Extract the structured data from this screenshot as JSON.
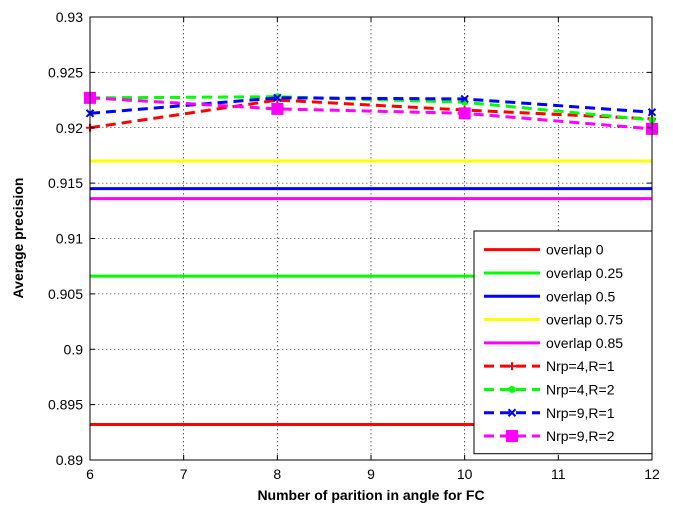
{
  "chart_data": {
    "type": "line",
    "title": "",
    "xlabel": "Number of parition in angle for FC",
    "ylabel": "Average precision",
    "xlim": [
      6,
      12
    ],
    "ylim": [
      0.89,
      0.93
    ],
    "xticks": [
      6,
      7,
      8,
      9,
      10,
      11,
      12
    ],
    "yticks": [
      0.89,
      0.895,
      0.9,
      0.905,
      0.91,
      0.915,
      0.92,
      0.925,
      0.93
    ],
    "x": [
      6,
      8,
      10,
      12
    ],
    "grid": true,
    "legend_position": "bottom-right",
    "series": [
      {
        "name": "overlap 0",
        "values": [
          0.8932,
          0.8932,
          0.8932,
          0.8932
        ],
        "color": "#ff0000",
        "style": "solid",
        "marker": "none"
      },
      {
        "name": "overlap 0.25",
        "values": [
          0.9066,
          0.9066,
          0.9066,
          0.9066
        ],
        "color": "#00ff00",
        "style": "solid",
        "marker": "none"
      },
      {
        "name": "overlap 0.5",
        "values": [
          0.9145,
          0.9145,
          0.9145,
          0.9145
        ],
        "color": "#0000ff",
        "style": "solid",
        "marker": "none"
      },
      {
        "name": "overlap 0.75",
        "values": [
          0.917,
          0.917,
          0.917,
          0.917
        ],
        "color": "#ffff00",
        "style": "solid",
        "marker": "none"
      },
      {
        "name": "overlap 0.85",
        "values": [
          0.9136,
          0.9136,
          0.9136,
          0.9136
        ],
        "color": "#ff00ff",
        "style": "solid",
        "marker": "none"
      },
      {
        "name": "Nrp=4,R=1",
        "values": [
          0.92,
          0.9225,
          0.9216,
          0.9208
        ],
        "color": "#ff0000",
        "style": "dashed",
        "marker": "plus"
      },
      {
        "name": "Nrp=4,R=2",
        "values": [
          0.9227,
          0.9228,
          0.9223,
          0.9207
        ],
        "color": "#00ff00",
        "style": "dashed",
        "marker": "dot"
      },
      {
        "name": "Nrp=9,R=1",
        "values": [
          0.9213,
          0.9227,
          0.9226,
          0.9214
        ],
        "color": "#0000ff",
        "style": "dashed",
        "marker": "x"
      },
      {
        "name": "Nrp=9,R=2",
        "values": [
          0.9227,
          0.9217,
          0.9213,
          0.9199
        ],
        "color": "#ff00ff",
        "style": "dashed",
        "marker": "square"
      }
    ]
  }
}
